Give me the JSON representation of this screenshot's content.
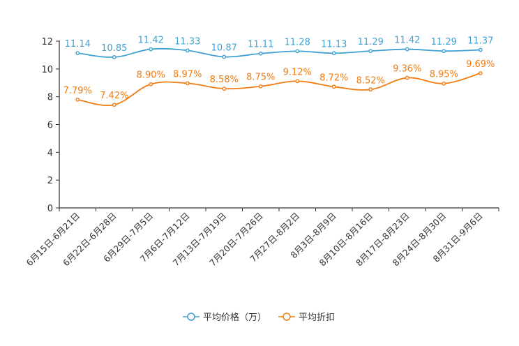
{
  "colors": {
    "price": "#3fa0d2",
    "discount": "#f07c12",
    "axis": "#333333"
  },
  "chart_data": {
    "type": "line",
    "categories": [
      "6月15日-6月21日",
      "6月22日-6月28日",
      "6月29日-7月5日",
      "7月6日-7月12日",
      "7月13日-7月19日",
      "7月20日-7月26日",
      "7月27日-8月2日",
      "8月3日-8月9日",
      "8月10日-8月16日",
      "8月17日-8月23日",
      "8月24日-8月30日",
      "8月31日-9月6日"
    ],
    "series": [
      {
        "name": "平均价格（万）",
        "values": [
          11.14,
          10.85,
          11.42,
          11.33,
          10.87,
          11.11,
          11.28,
          11.13,
          11.29,
          11.42,
          11.29,
          11.37
        ],
        "labels": [
          "11.14",
          "10.85",
          "11.42",
          "11.33",
          "10.87",
          "11.11",
          "11.28",
          "11.13",
          "11.29",
          "11.42",
          "11.29",
          "11.37"
        ]
      },
      {
        "name": "平均折扣",
        "values": [
          7.79,
          7.42,
          8.9,
          8.97,
          8.58,
          8.75,
          9.12,
          8.72,
          8.52,
          9.36,
          8.95,
          9.69
        ],
        "labels": [
          "7.79%",
          "7.42%",
          "8.90%",
          "8.97%",
          "8.58%",
          "8.75%",
          "9.12%",
          "8.72%",
          "8.52%",
          "9.36%",
          "8.95%",
          "9.69%"
        ]
      }
    ],
    "yticks": [
      "0",
      "2",
      "4",
      "6",
      "8",
      "10",
      "12"
    ],
    "ylim": [
      0,
      12
    ],
    "legend": "bottom-center"
  }
}
